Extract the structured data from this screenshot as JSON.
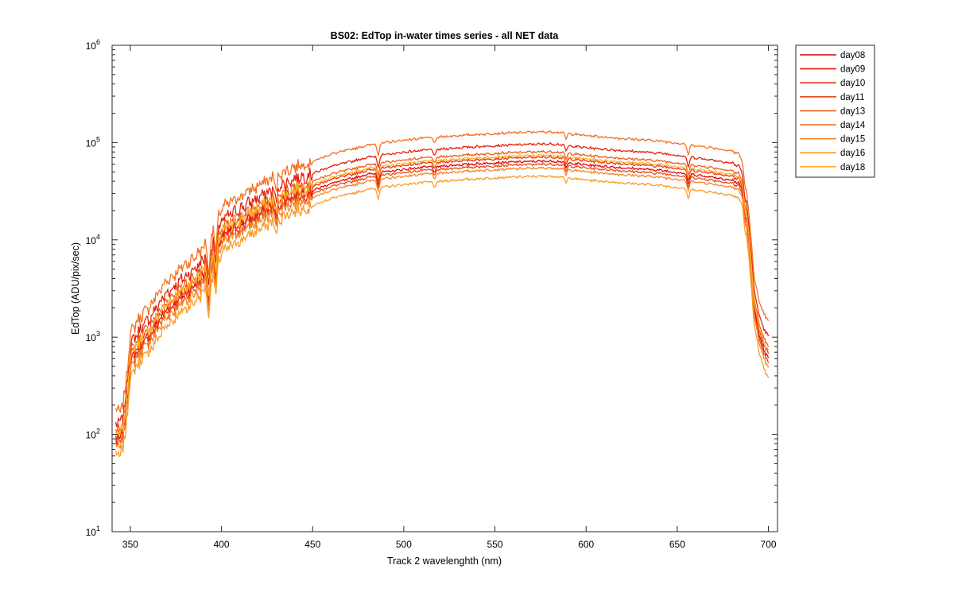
{
  "chart_data": {
    "type": "line",
    "title": "BS02: EdTop in-water times series - all NET data",
    "xlabel": "Track 2 wavelenghth (nm)",
    "ylabel": "EdTop (ADU/pix/sec)",
    "xlim": [
      340,
      705
    ],
    "ylim": [
      10,
      1000000
    ],
    "yscale": "log",
    "xticks": [
      350,
      400,
      450,
      500,
      550,
      600,
      650,
      700
    ],
    "yticks": [
      {
        "value": 10,
        "base": "10",
        "exp": "1"
      },
      {
        "value": 100,
        "base": "10",
        "exp": "2"
      },
      {
        "value": 1000,
        "base": "10",
        "exp": "3"
      },
      {
        "value": 10000,
        "base": "10",
        "exp": "4"
      },
      {
        "value": 100000,
        "base": "10",
        "exp": "5"
      },
      {
        "value": 1000000,
        "base": "10",
        "exp": "6"
      }
    ],
    "grid": false,
    "legend_position": "outside-top-right",
    "base_spectrum": {
      "x": [
        342,
        344,
        346,
        348,
        350,
        355,
        360,
        365,
        370,
        375,
        380,
        385,
        390,
        395,
        400,
        410,
        420,
        430,
        440,
        450,
        460,
        470,
        480,
        490,
        500,
        510,
        520,
        530,
        540,
        550,
        560,
        570,
        580,
        585,
        590,
        600,
        610,
        620,
        630,
        640,
        650,
        660,
        670,
        680,
        684,
        686,
        688,
        690,
        692,
        695,
        698,
        700
      ],
      "y": [
        90,
        85,
        100,
        200,
        550,
        800,
        1000,
        1400,
        1900,
        2300,
        2800,
        3300,
        4200,
        6000,
        10500,
        14000,
        18000,
        23000,
        28500,
        32000,
        38000,
        42000,
        47000,
        50000,
        53000,
        55500,
        57000,
        59000,
        60500,
        62000,
        63000,
        64000,
        64500,
        64000,
        62000,
        59000,
        57000,
        55000,
        53500,
        52000,
        49500,
        46500,
        44000,
        41000,
        38000,
        31000,
        17000,
        6500,
        2200,
        1000,
        700,
        600
      ]
    },
    "dips": [
      {
        "wavelength": 393,
        "depth": 0.6
      },
      {
        "wavelength": 397,
        "depth": 0.5
      },
      {
        "wavelength": 430,
        "depth": 0.32
      },
      {
        "wavelength": 486,
        "depth": 0.22
      },
      {
        "wavelength": 517,
        "depth": 0.14
      },
      {
        "wavelength": 589,
        "depth": 0.12
      },
      {
        "wavelength": 656,
        "depth": 0.22
      },
      {
        "wavelength": 687,
        "depth": 0.2
      }
    ],
    "series": [
      {
        "name": "day08",
        "color": "#e00000",
        "scale": 1.0
      },
      {
        "name": "day09",
        "color": "#e41e0a",
        "scale": 1.5
      },
      {
        "name": "day10",
        "color": "#e83212",
        "scale": 1.1
      },
      {
        "name": "day11",
        "color": "#ec4616",
        "scale": 0.93
      },
      {
        "name": "day13",
        "color": "#f05a1a",
        "scale": 1.25
      },
      {
        "name": "day14",
        "color": "#f46e1e",
        "scale": 2.0
      },
      {
        "name": "day15",
        "color": "#f88222",
        "scale": 0.85
      },
      {
        "name": "day16",
        "color": "#fb9a24",
        "scale": 0.7
      },
      {
        "name": "day18",
        "color": "#ffb020",
        "scale": 1.15
      }
    ]
  }
}
